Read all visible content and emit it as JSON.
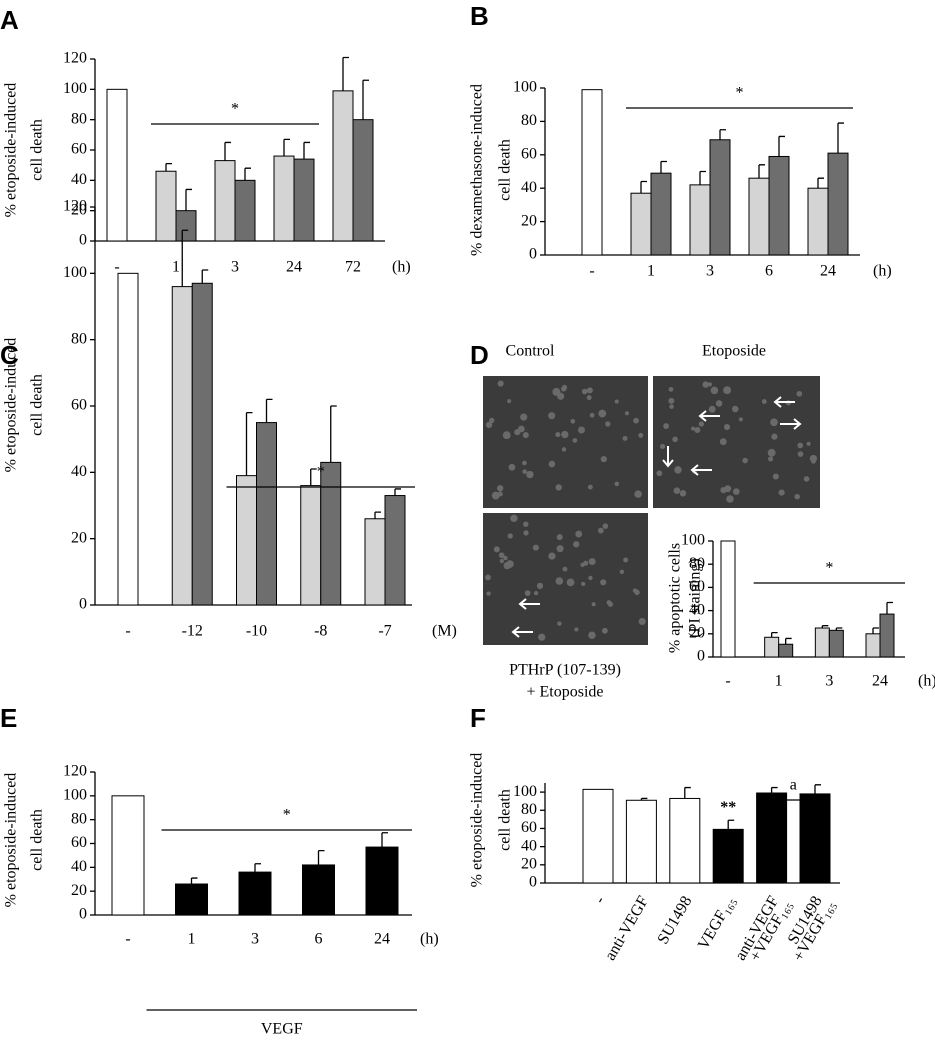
{
  "images": {
    "top_labels": [
      "Control",
      "Etoposide"
    ],
    "bottom_label": [
      "PTHrP (107-139)",
      "+ Etoposide"
    ]
  },
  "chart_data": [
    {
      "panel": "A",
      "type": "bar",
      "ylabel": [
        "% etoposide-induced",
        "cell death"
      ],
      "x_unit": "(h)",
      "categories": [
        "-",
        "1",
        "3",
        "24",
        "72"
      ],
      "ylim": [
        0,
        120
      ],
      "yticks": [
        0,
        20,
        40,
        60,
        80,
        100,
        120
      ],
      "annotations": [
        "*"
      ],
      "series": [
        {
          "color": "#ffffff",
          "values": [
            100,
            null,
            null,
            null,
            null
          ],
          "errors": [
            null,
            null,
            null,
            null,
            null
          ]
        },
        {
          "color": "#d4d4d4",
          "values": [
            null,
            46,
            53,
            56,
            99
          ],
          "errors": [
            null,
            5,
            12,
            11,
            22
          ]
        },
        {
          "color": "#6e6e6e",
          "values": [
            null,
            20,
            40,
            54,
            80
          ],
          "errors": [
            null,
            14,
            8,
            11,
            26
          ]
        }
      ]
    },
    {
      "panel": "B",
      "type": "bar",
      "ylabel": [
        "% dexamethasone-induced",
        "cell death"
      ],
      "x_unit": "(h)",
      "categories": [
        "-",
        "1",
        "3",
        "6",
        "24"
      ],
      "ylim": [
        0,
        100
      ],
      "yticks": [
        0,
        20,
        40,
        60,
        80,
        100
      ],
      "annotations": [
        "*"
      ],
      "series": [
        {
          "color": "#ffffff",
          "values": [
            99,
            null,
            null,
            null,
            null
          ],
          "errors": [
            null,
            null,
            null,
            null,
            null
          ]
        },
        {
          "color": "#d4d4d4",
          "values": [
            null,
            37,
            42,
            46,
            40
          ],
          "errors": [
            null,
            7,
            8,
            8,
            6
          ]
        },
        {
          "color": "#6e6e6e",
          "values": [
            null,
            49,
            69,
            59,
            61
          ],
          "errors": [
            null,
            7,
            6,
            12,
            18
          ]
        }
      ]
    },
    {
      "panel": "C",
      "type": "bar",
      "ylabel": [
        "% etoposide-induced",
        "cell death"
      ],
      "x_unit": "(M)",
      "categories": [
        "-",
        "-12",
        "-10",
        "-8",
        "-7"
      ],
      "ylim": [
        0,
        120
      ],
      "yticks": [
        0,
        20,
        40,
        60,
        80,
        100,
        120
      ],
      "annotations": [
        "*"
      ],
      "series": [
        {
          "color": "#ffffff",
          "values": [
            100,
            null,
            null,
            null,
            null
          ],
          "errors": [
            null,
            null,
            null,
            null,
            null
          ]
        },
        {
          "color": "#d4d4d4",
          "values": [
            null,
            96,
            39,
            36,
            26
          ],
          "errors": [
            null,
            17,
            19,
            5,
            2
          ]
        },
        {
          "color": "#6e6e6e",
          "values": [
            null,
            97,
            55,
            43,
            33
          ],
          "errors": [
            null,
            4,
            7,
            17,
            2
          ]
        }
      ]
    },
    {
      "panel": "D",
      "type": "bar",
      "ylabel": [
        "% apoptotic cells",
        "(PI staining)"
      ],
      "x_unit": "(h)",
      "categories": [
        "-",
        "1",
        "3",
        "24"
      ],
      "ylim": [
        0,
        100
      ],
      "yticks": [
        0,
        20,
        40,
        60,
        80,
        100
      ],
      "annotations": [
        "*"
      ],
      "series": [
        {
          "color": "#ffffff",
          "values": [
            100,
            null,
            null,
            null
          ],
          "errors": [
            null,
            null,
            null,
            null
          ]
        },
        {
          "color": "#d4d4d4",
          "values": [
            null,
            17,
            25,
            20
          ],
          "errors": [
            null,
            4,
            2,
            5
          ]
        },
        {
          "color": "#6e6e6e",
          "values": [
            null,
            11,
            23,
            37
          ],
          "errors": [
            null,
            5,
            2,
            10
          ]
        }
      ]
    },
    {
      "panel": "E",
      "type": "bar",
      "ylabel": [
        "% etoposide-induced",
        "cell death"
      ],
      "x_unit": "(h)",
      "group_label": "VEGF",
      "categories": [
        "-",
        "1",
        "3",
        "6",
        "24"
      ],
      "ylim": [
        0,
        120
      ],
      "yticks": [
        0,
        20,
        40,
        60,
        80,
        100,
        120
      ],
      "annotations": [
        "*"
      ],
      "series": [
        {
          "color": "#ffffff",
          "values": [
            100,
            null,
            null,
            null,
            null
          ],
          "errors": [
            null,
            null,
            null,
            null,
            null
          ]
        },
        {
          "color": "#000000",
          "values": [
            null,
            26,
            36,
            42,
            57
          ],
          "errors": [
            null,
            5,
            7,
            12,
            12
          ]
        }
      ]
    },
    {
      "panel": "F",
      "type": "bar",
      "ylabel": [
        "% etoposide-induced",
        "cell death"
      ],
      "categories": [
        [
          "-"
        ],
        [
          "anti-VEGF"
        ],
        [
          "SU1498"
        ],
        [
          "VEGF₁₆₅"
        ],
        [
          "anti-VEGF",
          "+VEGF₁₆₅"
        ],
        [
          "SU1498",
          "+VEGF₁₆₅"
        ]
      ],
      "ylim": [
        0,
        110
      ],
      "yticks": [
        0,
        20,
        40,
        60,
        80,
        100
      ],
      "annotations": [
        "**",
        "a"
      ],
      "series": [
        {
          "color": "#ffffff",
          "values": [
            103,
            91,
            93,
            null,
            null,
            null
          ],
          "errors": [
            null,
            2,
            12,
            null,
            null,
            null
          ]
        },
        {
          "color": "#000000",
          "values": [
            null,
            null,
            null,
            59,
            99,
            98
          ],
          "errors": [
            null,
            null,
            null,
            10,
            6,
            10
          ]
        }
      ]
    }
  ]
}
